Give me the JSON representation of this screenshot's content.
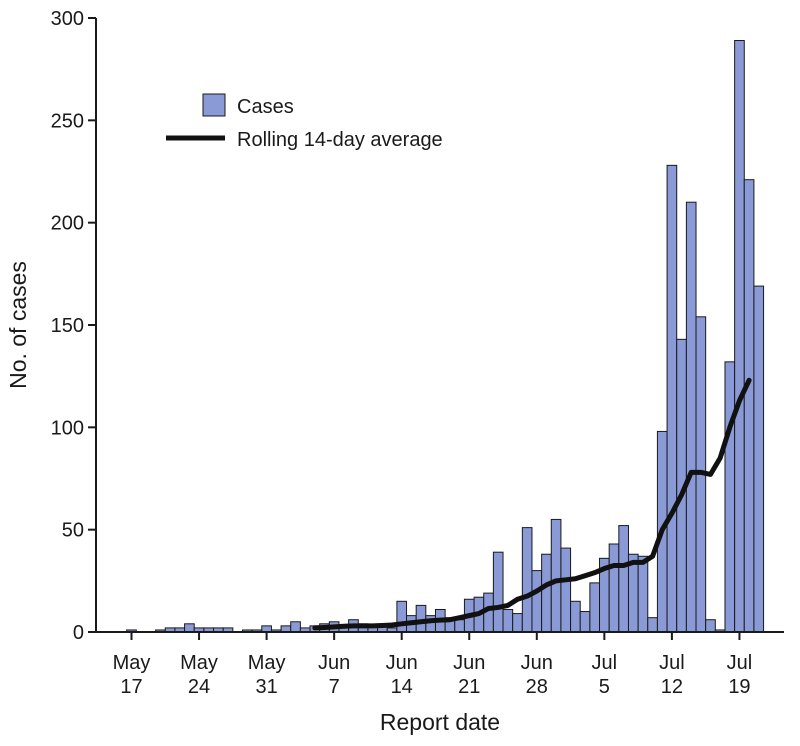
{
  "chart_data": {
    "type": "bar",
    "title": "",
    "xlabel": "Report date",
    "ylabel": "No. of cases",
    "ylim": [
      0,
      300
    ],
    "yticks": [
      0,
      50,
      100,
      150,
      200,
      250,
      300
    ],
    "xtick_labels": [
      {
        "day_index": 0,
        "line1": "May",
        "line2": "17"
      },
      {
        "day_index": 7,
        "line1": "May",
        "line2": "24"
      },
      {
        "day_index": 14,
        "line1": "May",
        "line2": "31"
      },
      {
        "day_index": 21,
        "line1": "Jun",
        "line2": "7"
      },
      {
        "day_index": 28,
        "line1": "Jun",
        "line2": "14"
      },
      {
        "day_index": 35,
        "line1": "Jun",
        "line2": "21"
      },
      {
        "day_index": 42,
        "line1": "Jun",
        "line2": "28"
      },
      {
        "day_index": 49,
        "line1": "Jul",
        "line2": "5"
      },
      {
        "day_index": 56,
        "line1": "Jul",
        "line2": "12"
      },
      {
        "day_index": 63,
        "line1": "Jul",
        "line2": "19"
      }
    ],
    "series": [
      {
        "name": "Cases",
        "type": "bar",
        "start_date": "May 17",
        "values": [
          1,
          0,
          0,
          1,
          2,
          2,
          4,
          2,
          2,
          2,
          2,
          0,
          1,
          1,
          3,
          1,
          3,
          5,
          2,
          3,
          4,
          5,
          3,
          6,
          4,
          3,
          3,
          2,
          15,
          8,
          13,
          8,
          11,
          7,
          6,
          16,
          17,
          19,
          39,
          11,
          9,
          51,
          30,
          38,
          55,
          41,
          15,
          10,
          24,
          36,
          43,
          52,
          38,
          37,
          7,
          98,
          228,
          143,
          210,
          154,
          6,
          1,
          132,
          289,
          221,
          169
        ]
      },
      {
        "name": "Rolling 14-day average",
        "type": "line",
        "start_day_index": 19,
        "values": [
          2,
          2.2,
          2.5,
          2.8,
          3,
          3,
          3,
          3.2,
          3.4,
          4,
          4.5,
          5,
          5.5,
          5.8,
          6,
          7,
          8,
          9,
          11.5,
          12,
          13,
          16,
          17.5,
          20,
          23,
          25,
          25.5,
          26,
          27.5,
          29,
          31,
          32.5,
          32.5,
          34,
          34,
          37,
          50,
          58,
          67,
          78,
          78,
          77,
          85,
          100,
          113,
          123
        ]
      }
    ]
  },
  "legend": {
    "cases_label": "Cases",
    "average_label": "Rolling 14-day average"
  }
}
